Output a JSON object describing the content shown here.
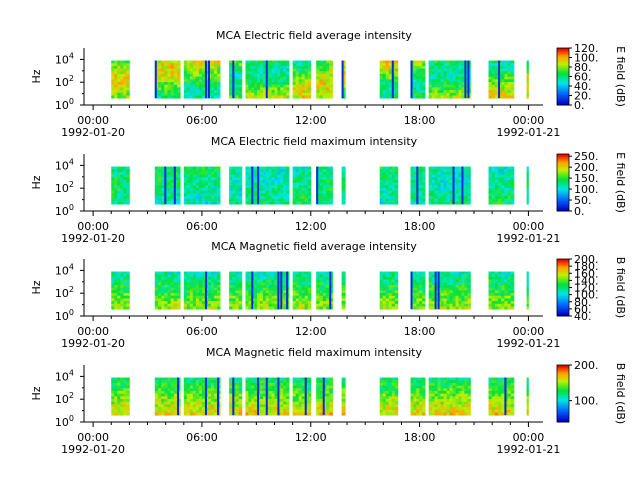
{
  "chart_data": [
    {
      "type": "heatmap",
      "title": "MCA  Electric field average intensity",
      "ylabel": "Hz",
      "yscale": "log",
      "ylim": [
        1,
        100000
      ],
      "yticks": [
        {
          "exp": "0"
        },
        {
          "exp": "2"
        },
        {
          "exp": "4"
        }
      ],
      "xticks": [
        "00:00",
        "06:00",
        "12:00",
        "18:00",
        "00:00"
      ],
      "xdates": [
        "1992-01-20",
        "1992-01-21"
      ],
      "colorbar": {
        "label": "E field (dB)",
        "min": 0,
        "max": 120,
        "ticks": [
          "0.",
          "20.",
          "40.",
          "60.",
          "80.",
          "100.",
          "120."
        ]
      },
      "data_ranges_hours": [
        [
          1.0,
          2.0
        ],
        [
          3.4,
          4.8
        ],
        [
          5.0,
          7.0
        ],
        [
          7.5,
          8.2
        ],
        [
          8.4,
          10.8
        ],
        [
          11.0,
          12.0
        ],
        [
          12.3,
          13.2
        ],
        [
          13.7,
          13.9
        ],
        [
          15.8,
          16.8
        ],
        [
          17.5,
          18.3
        ],
        [
          18.5,
          20.8
        ],
        [
          21.8,
          23.2
        ],
        [
          23.9,
          24.0
        ]
      ],
      "level": [
        55,
        92
      ]
    },
    {
      "type": "heatmap",
      "title": "MCA  Electric field maximum intensity",
      "ylabel": "Hz",
      "yscale": "log",
      "ylim": [
        1,
        100000
      ],
      "yticks": [
        {
          "exp": "0"
        },
        {
          "exp": "2"
        },
        {
          "exp": "4"
        }
      ],
      "xticks": [
        "00:00",
        "06:00",
        "12:00",
        "18:00",
        "00:00"
      ],
      "xdates": [
        "1992-01-20",
        "1992-01-21"
      ],
      "colorbar": {
        "label": "E field (dB)",
        "min": 0,
        "max": 260,
        "ticks": [
          "0.",
          "50.",
          "100.",
          "150.",
          "200.",
          "250."
        ]
      },
      "data_ranges_hours": [
        [
          1.0,
          2.0
        ],
        [
          3.4,
          4.8
        ],
        [
          5.0,
          7.0
        ],
        [
          7.5,
          8.2
        ],
        [
          8.4,
          10.8
        ],
        [
          11.0,
          12.0
        ],
        [
          12.3,
          13.2
        ],
        [
          13.7,
          13.9
        ],
        [
          15.8,
          16.8
        ],
        [
          17.5,
          18.3
        ],
        [
          18.5,
          20.8
        ],
        [
          21.8,
          23.2
        ],
        [
          23.9,
          24.0
        ]
      ],
      "level": [
        110,
        135
      ]
    },
    {
      "type": "heatmap",
      "title": "MCA  Magnetic field average intensity",
      "ylabel": "Hz",
      "yscale": "log",
      "ylim": [
        1,
        100000
      ],
      "yticks": [
        {
          "exp": "0"
        },
        {
          "exp": "2"
        },
        {
          "exp": "4"
        }
      ],
      "xticks": [
        "00:00",
        "06:00",
        "12:00",
        "18:00",
        "00:00"
      ],
      "xdates": [
        "1992-01-20",
        "1992-01-21"
      ],
      "colorbar": {
        "label": "B field (dB)",
        "min": 40,
        "max": 200,
        "ticks": [
          "40.",
          "60.",
          "80.",
          "100.",
          "120.",
          "140.",
          "160.",
          "180.",
          "200."
        ]
      },
      "data_ranges_hours": [
        [
          1.0,
          2.0
        ],
        [
          3.4,
          4.8
        ],
        [
          5.0,
          7.0
        ],
        [
          7.5,
          8.2
        ],
        [
          8.4,
          10.8
        ],
        [
          11.0,
          12.0
        ],
        [
          12.3,
          13.2
        ],
        [
          13.7,
          13.9
        ],
        [
          15.8,
          16.8
        ],
        [
          17.5,
          18.3
        ],
        [
          18.5,
          20.8
        ],
        [
          21.8,
          23.2
        ],
        [
          23.9,
          24.0
        ]
      ],
      "level": [
        110,
        150
      ]
    },
    {
      "type": "heatmap",
      "title": "MCA  Magnetic field maximum intensity",
      "ylabel": "Hz",
      "yscale": "log",
      "ylim": [
        1,
        100000
      ],
      "yticks": [
        {
          "exp": "0"
        },
        {
          "exp": "2"
        },
        {
          "exp": "4"
        }
      ],
      "xticks": [
        "00:00",
        "06:00",
        "12:00",
        "18:00",
        "00:00"
      ],
      "xdates": [
        "1992-01-20",
        "1992-01-21"
      ],
      "colorbar": {
        "label": "B field (dB)",
        "min": 40,
        "max": 200,
        "ticks": [
          "100.",
          "200."
        ]
      },
      "data_ranges_hours": [
        [
          1.0,
          2.0
        ],
        [
          3.4,
          4.8
        ],
        [
          5.0,
          7.0
        ],
        [
          7.5,
          8.2
        ],
        [
          8.4,
          10.8
        ],
        [
          11.0,
          12.0
        ],
        [
          12.3,
          13.2
        ],
        [
          13.7,
          13.9
        ],
        [
          15.8,
          16.8
        ],
        [
          17.5,
          18.3
        ],
        [
          18.5,
          20.8
        ],
        [
          21.8,
          23.2
        ],
        [
          23.9,
          24.0
        ]
      ],
      "level": [
        120,
        165
      ]
    }
  ]
}
